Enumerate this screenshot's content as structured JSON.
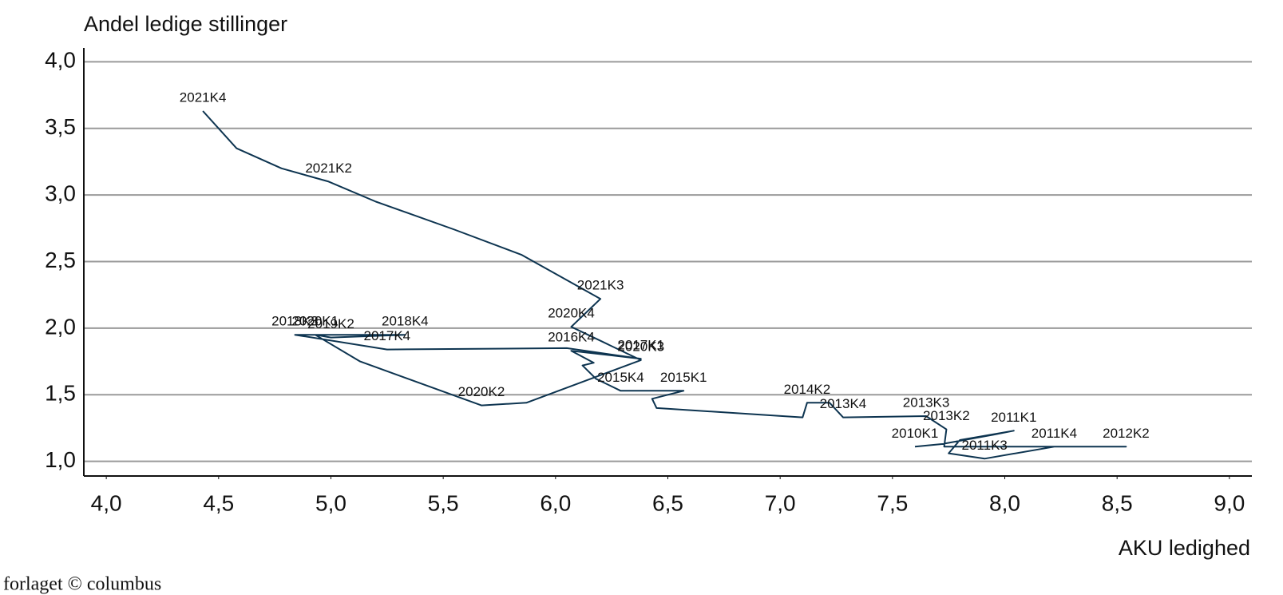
{
  "chart_data": {
    "type": "line",
    "title": "Andel ledige stillinger",
    "x_label": "AKU ledighed",
    "color": "#0d3450",
    "grid": true,
    "x": [
      7.6,
      7.72,
      7.95,
      8.04,
      7.8,
      7.75,
      7.91,
      8.22,
      8.54,
      7.73,
      7.74,
      7.65,
      7.28,
      7.22,
      7.12,
      7.1,
      6.45,
      6.43,
      6.57,
      6.29,
      6.18,
      6.12,
      6.17,
      6.07,
      6.38,
      6.05,
      5.25,
      4.84,
      5.33,
      5.0,
      4.93,
      5.13,
      5.67,
      5.87,
      6.38,
      6.07,
      6.2,
      5.85,
      5.55,
      5.2,
      4.99,
      4.78,
      4.58,
      4.43
    ],
    "y": [
      1.11,
      1.13,
      1.2,
      1.23,
      1.16,
      1.06,
      1.02,
      1.11,
      1.11,
      1.11,
      1.24,
      1.34,
      1.33,
      1.44,
      1.44,
      1.33,
      1.4,
      1.47,
      1.53,
      1.53,
      1.62,
      1.72,
      1.74,
      1.83,
      1.77,
      1.85,
      1.84,
      1.95,
      1.95,
      1.93,
      1.95,
      1.75,
      1.42,
      1.44,
      1.76,
      2.01,
      2.22,
      2.55,
      2.74,
      2.95,
      3.1,
      3.2,
      3.35,
      3.63
    ],
    "labels": [
      "2010K1",
      null,
      null,
      "2011K1",
      null,
      null,
      "2011K3",
      "2011K4",
      "2012K2",
      null,
      "2013K2",
      "2013K3",
      "2013K4",
      null,
      "2014K2",
      null,
      null,
      null,
      "2015K1",
      "2015K4",
      null,
      null,
      null,
      "2016K4",
      "2017K1",
      null,
      "2017K4",
      "2018K3",
      "2018K4",
      "2019K2",
      "2020K1",
      null,
      "2020K2",
      null,
      "2020K3",
      "2020K4",
      "2021K3",
      null,
      null,
      null,
      "2021K2",
      null,
      null,
      "2021K4"
    ],
    "xlim": [
      3.9,
      9.1
    ],
    "ylim": [
      0.89,
      4.08
    ],
    "xticks": [
      {
        "value": 4.0,
        "label": "4,0"
      },
      {
        "value": 4.5,
        "label": "4,5"
      },
      {
        "value": 5.0,
        "label": "5,0"
      },
      {
        "value": 5.5,
        "label": "5,5"
      },
      {
        "value": 6.0,
        "label": "6,0"
      },
      {
        "value": 6.5,
        "label": "6,5"
      },
      {
        "value": 7.0,
        "label": "7,0"
      },
      {
        "value": 7.5,
        "label": "7,5"
      },
      {
        "value": 8.0,
        "label": "8,0"
      },
      {
        "value": 8.5,
        "label": "8,5"
      },
      {
        "value": 9.0,
        "label": "9,0"
      }
    ],
    "yticks": [
      {
        "value": 1.0,
        "label": "1,0"
      },
      {
        "value": 1.5,
        "label": "1,5"
      },
      {
        "value": 2.0,
        "label": "2,0"
      },
      {
        "value": 2.5,
        "label": "2,5"
      },
      {
        "value": 3.0,
        "label": "3,0"
      },
      {
        "value": 3.5,
        "label": "3,5"
      },
      {
        "value": 4.0,
        "label": "4,0"
      }
    ]
  },
  "footer": "forlaget © columbus"
}
